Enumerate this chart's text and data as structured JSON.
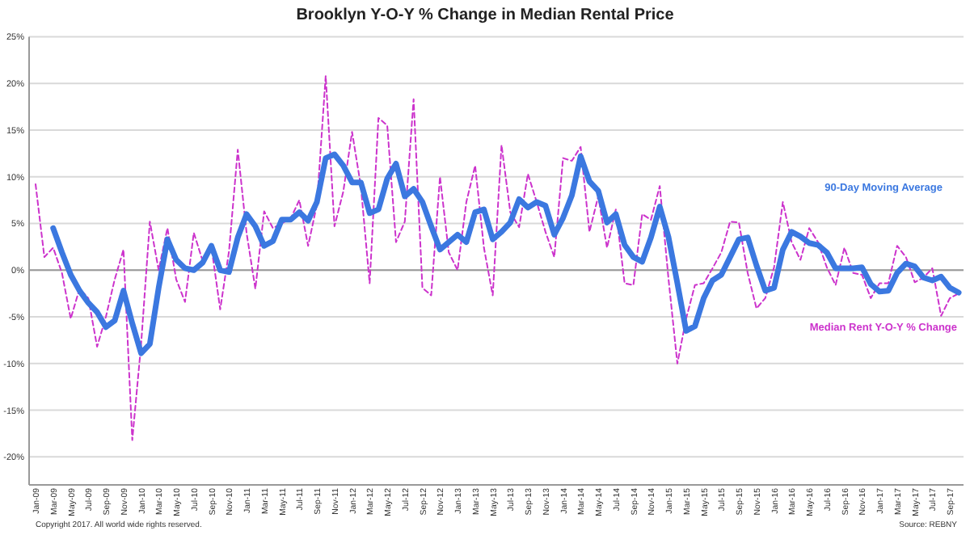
{
  "chart_data": {
    "type": "line",
    "title": "Brooklyn Y-O-Y % Change in Median Rental Price",
    "categories": [
      "Jan-09",
      null,
      "Mar-09",
      null,
      "May-09",
      null,
      "Jul-09",
      null,
      "Sep-09",
      null,
      "Nov-09",
      null,
      "Jan-10",
      null,
      "Mar-10",
      null,
      "May-10",
      null,
      "Jul-10",
      null,
      "Sep-10",
      null,
      "Nov-10",
      null,
      "Jan-11",
      null,
      "Mar-11",
      null,
      "May-11",
      null,
      "Jul-11",
      null,
      "Sep-11",
      null,
      "Nov-11",
      null,
      "Jan-12",
      null,
      "Mar-12",
      null,
      "May-12",
      null,
      "Jul-12",
      null,
      "Sep-12",
      null,
      "Nov-12",
      null,
      "Jan-13",
      null,
      "Mar-13",
      null,
      "May-13",
      null,
      "Jul-13",
      null,
      "Sep-13",
      null,
      "Nov-13",
      null,
      "Jan-14",
      null,
      "Mar-14",
      null,
      "May-14",
      null,
      "Jul-14",
      null,
      "Sep-14",
      null,
      "Nov-14",
      null,
      "Jan-15",
      null,
      "Mar-15",
      null,
      "May-15",
      null,
      "Jul-15",
      null,
      "Sep-15",
      null,
      "Nov-15",
      null,
      "Jan-16",
      null,
      "Mar-16",
      null,
      "May-16",
      null,
      "Jul-16",
      null,
      "Sep-16",
      null,
      "Nov-16",
      null,
      "Jan-17",
      null,
      "Mar-17",
      null,
      "May-17",
      null,
      "Jul-17",
      null,
      "Sep-17",
      null
    ],
    "series": [
      {
        "name": "Median Rent Y-O-Y % Change",
        "color": "#cc33cc",
        "line_style": "dashed",
        "values": [
          9.2,
          1.4,
          2.4,
          -0.3,
          -5.2,
          -2,
          -3,
          -8.2,
          -5,
          -1,
          2.2,
          -18.2,
          -8,
          5.2,
          0,
          4.5,
          -1,
          -3.4,
          4,
          1,
          2.5,
          -4.2,
          2,
          12.9,
          4,
          -2,
          6.3,
          4.5,
          5,
          5.5,
          7.5,
          2.6,
          7,
          20.8,
          4.7,
          8.4,
          14.8,
          9,
          -1.4,
          16.3,
          15.5,
          3,
          5.2,
          18.3,
          -1.9,
          -2.7,
          10,
          1.9,
          0,
          7.3,
          11.2,
          2.4,
          -2.7,
          13.4,
          6.2,
          4.6,
          10.3,
          7.3,
          4.1,
          1.4,
          12,
          11.7,
          13.2,
          4.1,
          7.9,
          2.4,
          6.5,
          -1.4,
          -1.6,
          6,
          5.4,
          9,
          -1,
          -10,
          -5.2,
          -1.6,
          -1.4,
          0.2,
          1.9,
          5.2,
          5.1,
          -0.3,
          -4.1,
          -3,
          0.3,
          7.3,
          3,
          1.1,
          4.5,
          3,
          0.3,
          -1.6,
          2.4,
          -0.3,
          -0.5,
          -3,
          -1.4,
          -1.4,
          2.6,
          1.4,
          -1.3,
          -0.8,
          0.2,
          -4.9,
          -3,
          -2.5
        ]
      },
      {
        "name": "90-Day Moving Average",
        "color": "#3b78e0",
        "line_style": "solid",
        "values": [
          null,
          null,
          4.5,
          1.9,
          -0.5,
          -2.2,
          -3.5,
          -4.5,
          -6.1,
          -5.4,
          -2.2,
          -5.7,
          -8.9,
          -7.9,
          -1.9,
          3.3,
          1.1,
          0.2,
          0,
          0.8,
          2.6,
          0,
          -0.2,
          3.5,
          6,
          4.7,
          2.6,
          3.1,
          5.4,
          5.4,
          6.2,
          5.3,
          7.3,
          12,
          12.4,
          11.2,
          9.4,
          9.4,
          6.1,
          6.5,
          9.8,
          11.4,
          7.9,
          8.7,
          7.3,
          4.7,
          2.2,
          3,
          3.8,
          3,
          6.2,
          6.5,
          3.3,
          4.1,
          5.1,
          7.6,
          6.7,
          7.3,
          6.9,
          3.8,
          5.6,
          8,
          12.2,
          9.5,
          8.5,
          5.1,
          6,
          2.7,
          1.4,
          0.9,
          3.5,
          6.8,
          3.5,
          -1.4,
          -6.5,
          -6,
          -3,
          -1.1,
          -0.5,
          1.4,
          3.3,
          3.5,
          0.5,
          -2.2,
          -1.9,
          2.2,
          4.1,
          3.6,
          2.9,
          2.7,
          1.9,
          0.2,
          0.2,
          0.2,
          0.3,
          -1.5,
          -2.3,
          -2.2,
          -0.3,
          0.7,
          0.4,
          -0.8,
          -1.1,
          -0.7,
          -1.9,
          -2.4
        ]
      }
    ],
    "ylim": [
      -23,
      25
    ],
    "yticks": [
      {
        "value": -20,
        "label": "-20%"
      },
      {
        "value": -15,
        "label": "-15%"
      },
      {
        "value": -10,
        "label": "-10%"
      },
      {
        "value": -5,
        "label": "-5%"
      },
      {
        "value": 0,
        "label": "0%"
      },
      {
        "value": 5,
        "label": "5%"
      },
      {
        "value": 10,
        "label": "10%"
      },
      {
        "value": 15,
        "label": "15%"
      },
      {
        "value": 20,
        "label": "20%"
      },
      {
        "value": 25,
        "label": "25%"
      }
    ],
    "grid": "y",
    "legend": false,
    "marker": "none",
    "annotations": [
      "Copyright 2017. All world wide rights reserved.",
      "Source: REBNY"
    ]
  }
}
